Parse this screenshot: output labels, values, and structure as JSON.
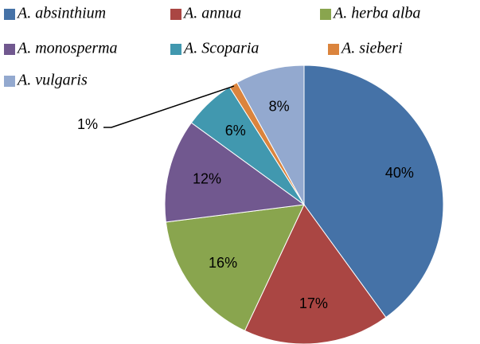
{
  "chart_data": {
    "type": "pie",
    "categories": [
      "A. absinthium",
      "A. annua",
      "A. herba alba",
      "A. monosperma",
      "A. Scoparia",
      "A. sieberi",
      "A. vulgaris"
    ],
    "values": [
      40,
      17,
      16,
      12,
      6,
      1,
      8
    ],
    "value_labels": [
      "40%",
      "17%",
      "16%",
      "12%",
      "6%",
      "1%",
      "8%"
    ],
    "colors": [
      "#4572a7",
      "#aa4643",
      "#89a54e",
      "#71588f",
      "#4198af",
      "#db843d",
      "#93a9cf"
    ],
    "legend": "top"
  }
}
